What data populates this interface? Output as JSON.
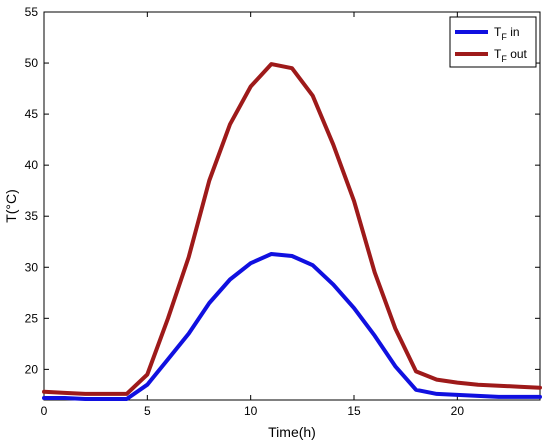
{
  "chart_data": {
    "type": "line",
    "title": "",
    "xlabel": "Time(h)",
    "ylabel": "T(°C)",
    "xlim": [
      0,
      24
    ],
    "ylim": [
      17,
      55
    ],
    "xticks": [
      0,
      5,
      10,
      15,
      20
    ],
    "yticks": [
      20,
      25,
      30,
      35,
      40,
      45,
      50,
      55
    ],
    "grid": false,
    "legend_position": "top-right",
    "series": [
      {
        "name": "in",
        "legend_base": "T",
        "legend_sub": "F",
        "color": "#1010e0",
        "x": [
          0,
          1,
          2,
          3,
          4,
          5,
          6,
          7,
          8,
          9,
          10,
          11,
          12,
          13,
          14,
          15,
          16,
          17,
          18,
          19,
          20,
          21,
          22,
          23,
          24
        ],
        "y": [
          17.2,
          17.2,
          17.1,
          17.1,
          17.1,
          18.5,
          21.0,
          23.5,
          26.5,
          28.8,
          30.4,
          31.3,
          31.1,
          30.2,
          28.3,
          26.0,
          23.3,
          20.3,
          18.0,
          17.6,
          17.5,
          17.4,
          17.3,
          17.3,
          17.3
        ]
      },
      {
        "name": "out",
        "legend_base": "T",
        "legend_sub": "F",
        "color": "#9e1a1a",
        "x": [
          0,
          1,
          2,
          3,
          4,
          5,
          6,
          7,
          8,
          9,
          10,
          11,
          12,
          13,
          14,
          15,
          16,
          17,
          18,
          19,
          20,
          21,
          22,
          23,
          24
        ],
        "y": [
          17.8,
          17.7,
          17.6,
          17.6,
          17.6,
          19.5,
          25.0,
          31.0,
          38.5,
          44.0,
          47.7,
          49.9,
          49.5,
          46.8,
          42.0,
          36.5,
          29.5,
          24.0,
          19.8,
          19.0,
          18.7,
          18.5,
          18.4,
          18.3,
          18.2
        ]
      }
    ]
  }
}
